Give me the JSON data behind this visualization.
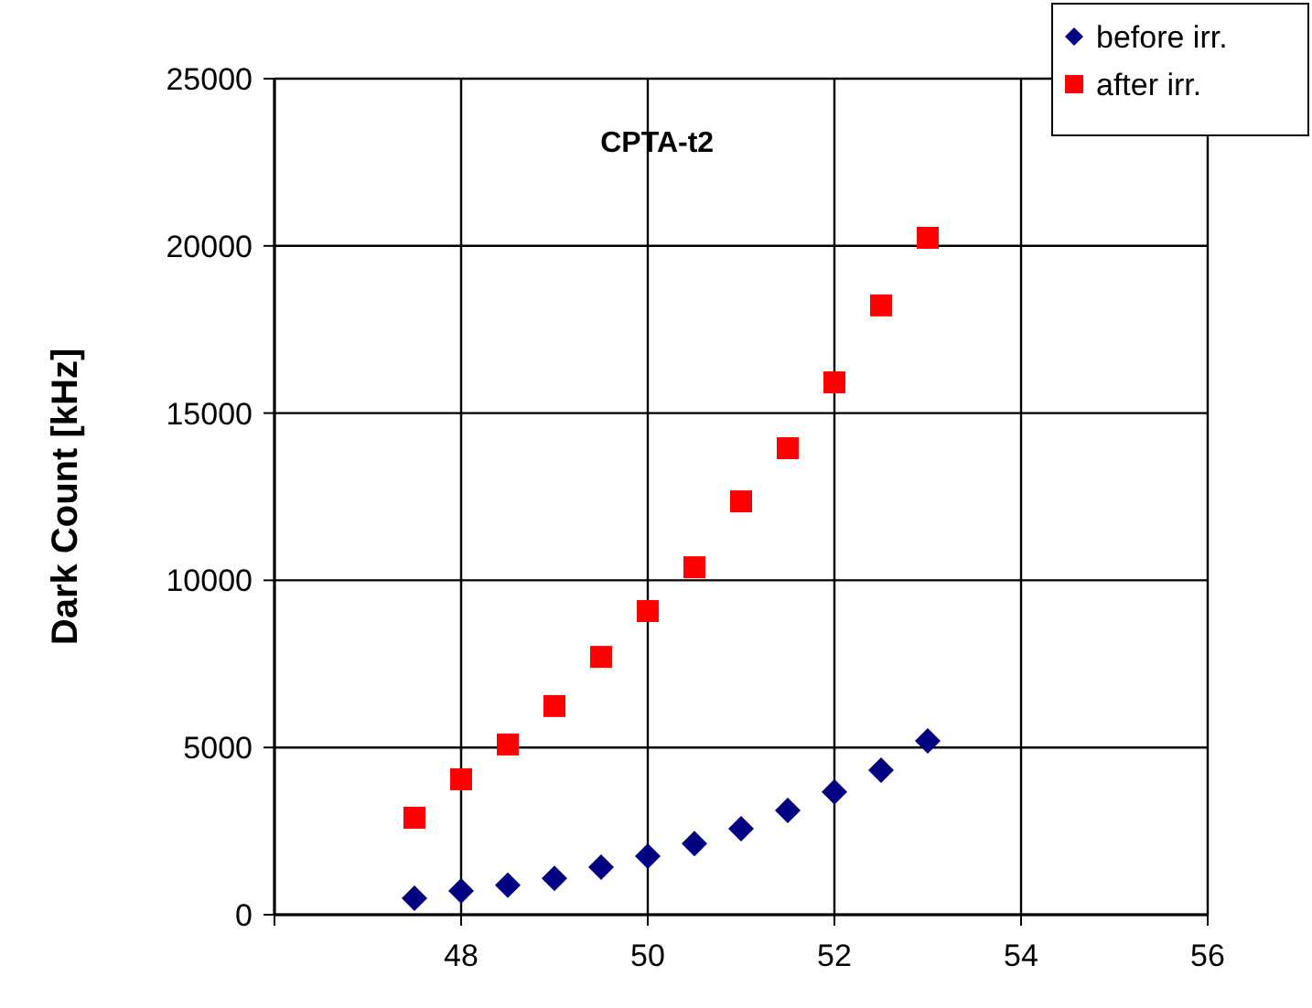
{
  "chart_data": {
    "type": "scatter",
    "title": "CPTA-t2",
    "ylabel": "Dark Count [kHz]",
    "xlim": [
      46,
      56
    ],
    "xticks": [
      {
        "value": 46,
        "label": null
      },
      48,
      50,
      52,
      54,
      56
    ],
    "ylim": [
      0,
      25000
    ],
    "yticks": [
      0,
      5000,
      10000,
      15000,
      20000,
      25000
    ],
    "grid": true,
    "legend": "top right",
    "series": [
      {
        "name": "before irr.",
        "color": "#000080",
        "marker": "diamond",
        "x": [
          47.5,
          48,
          48.5,
          49,
          49.5,
          50,
          50.5,
          51,
          51.5,
          52,
          52.5,
          53
        ],
        "values": [
          490,
          710,
          880,
          1090,
          1420,
          1750,
          2130,
          2570,
          3120,
          3670,
          4320,
          5200
        ]
      },
      {
        "name": "after irr.",
        "color": "#ff0000",
        "marker": "square",
        "x": [
          47.5,
          48,
          48.5,
          49,
          49.5,
          50,
          50.5,
          51,
          51.5,
          52,
          52.5,
          53
        ],
        "values": [
          2900,
          4050,
          5090,
          6240,
          7710,
          9080,
          10390,
          12360,
          13950,
          15920,
          18220,
          20240
        ]
      }
    ]
  }
}
